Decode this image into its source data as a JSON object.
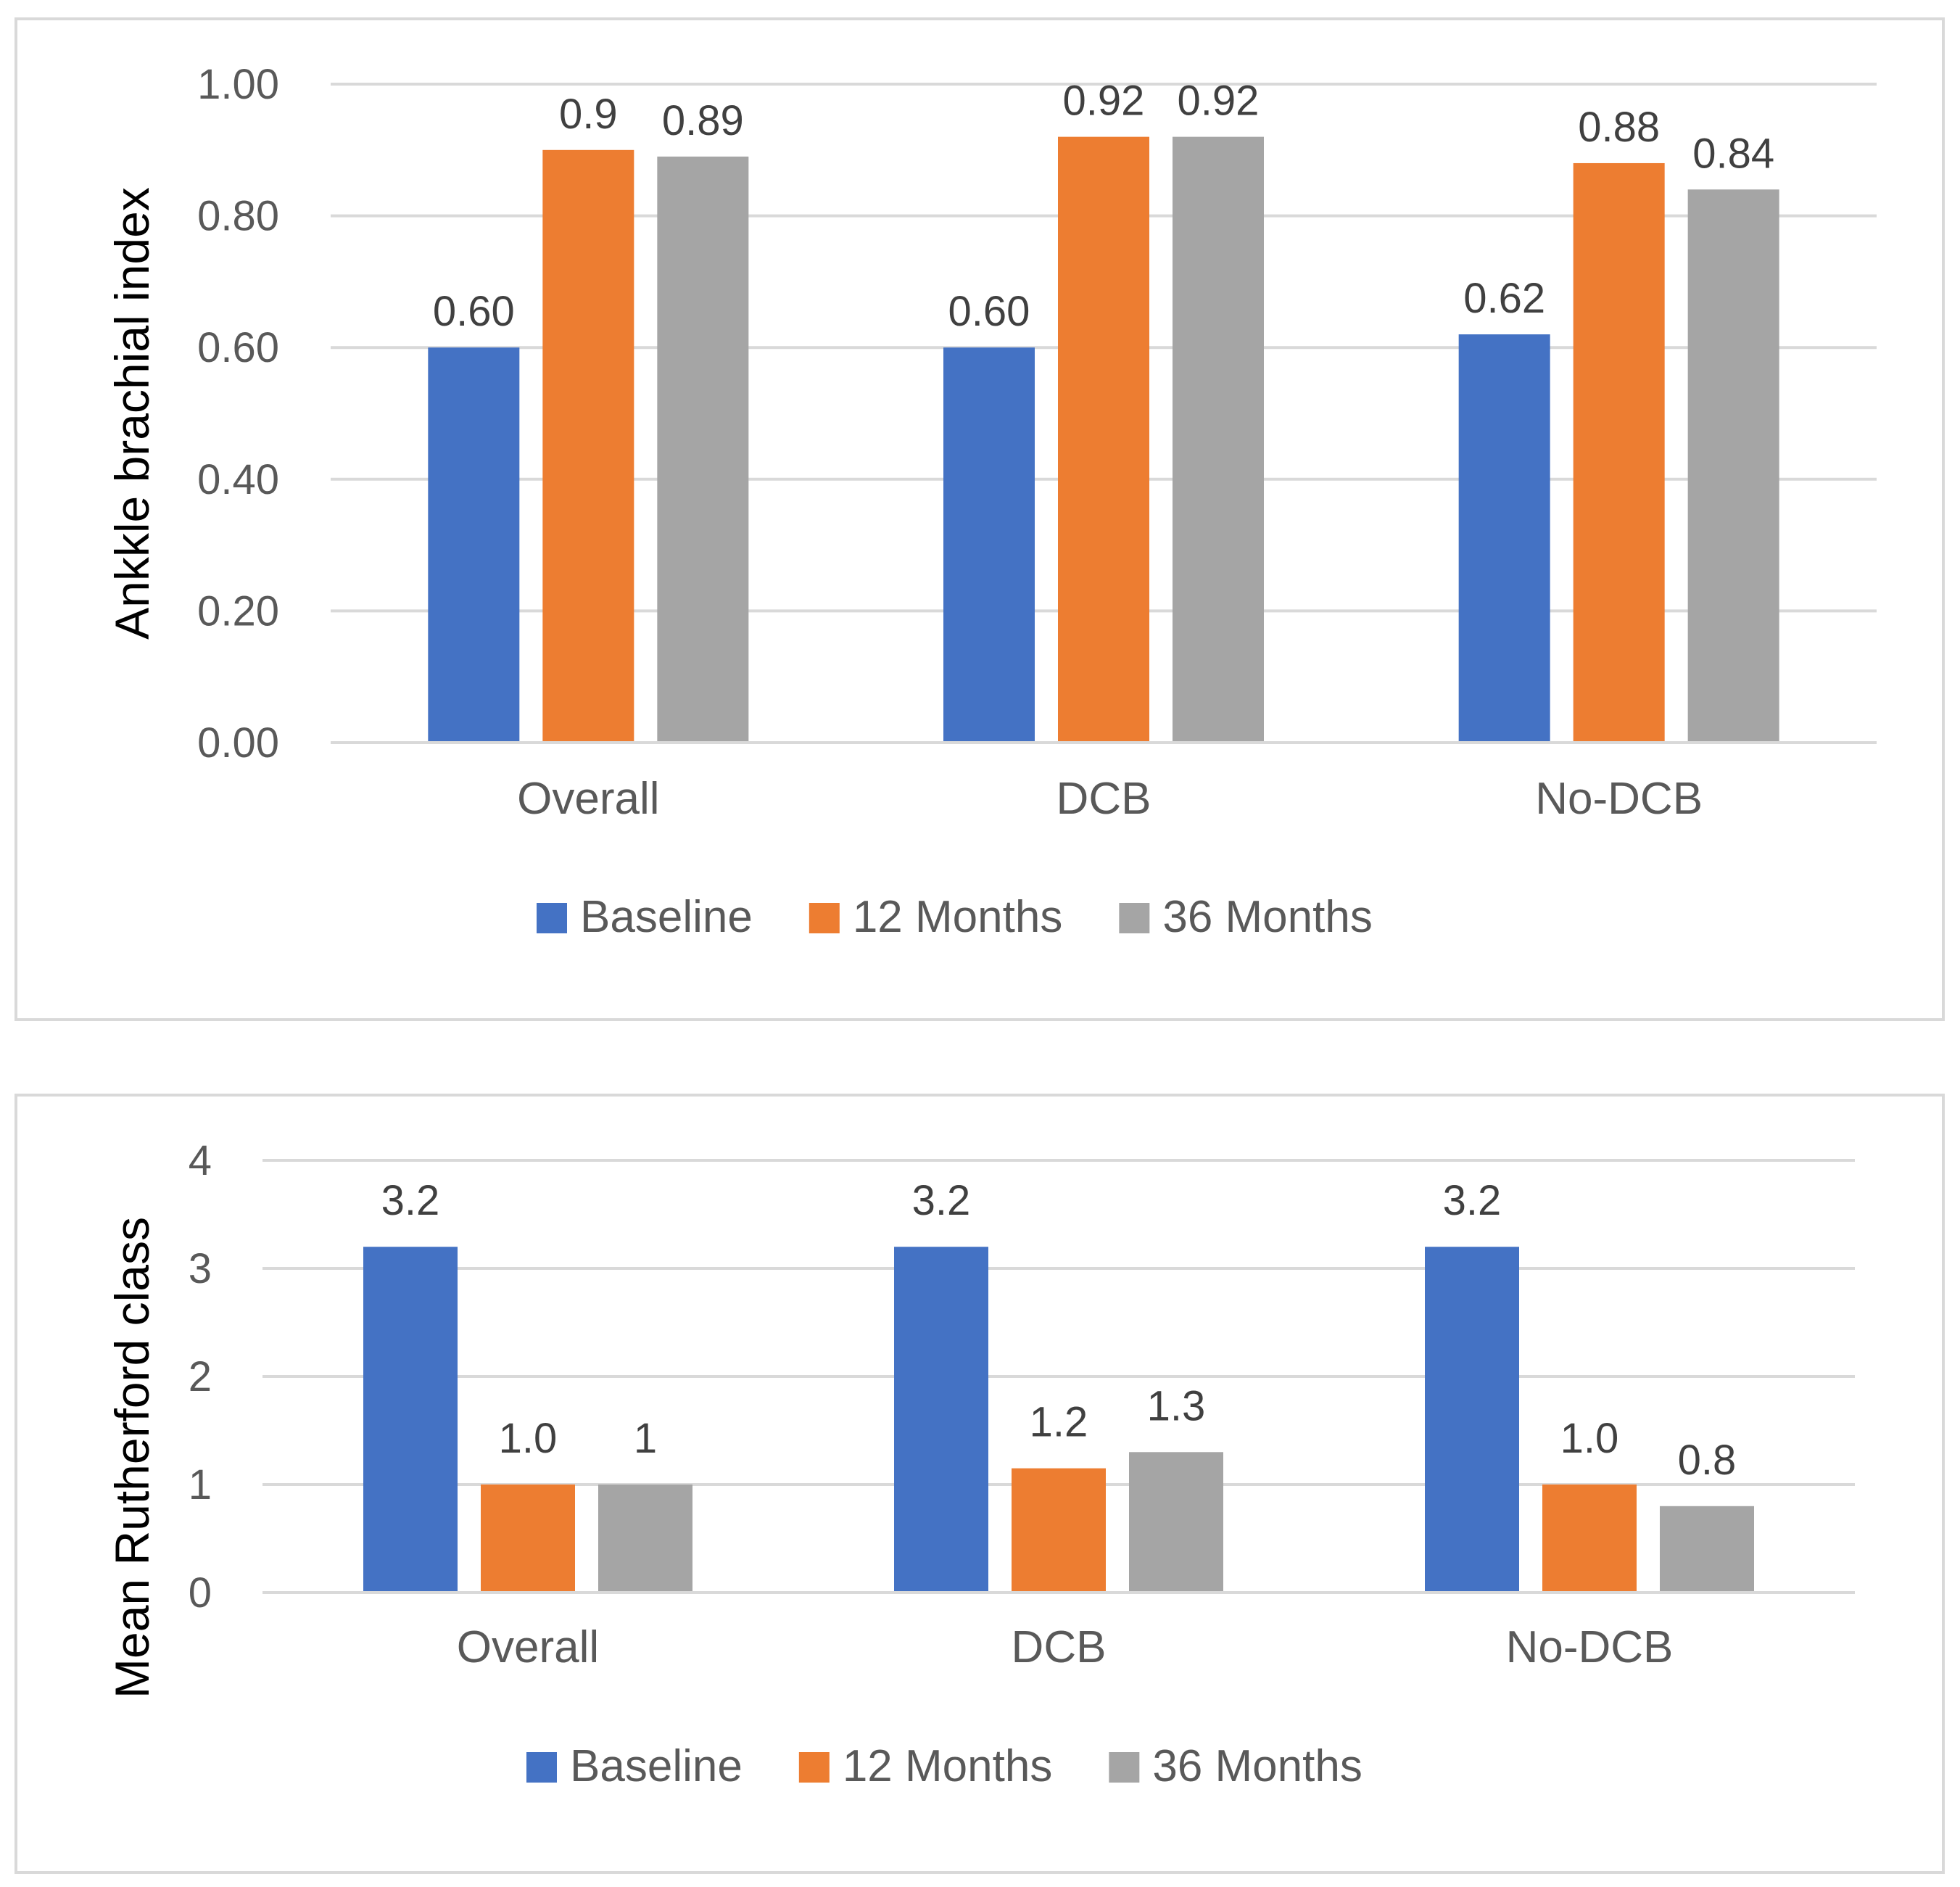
{
  "colors": {
    "baseline": "#4472C4",
    "m12": "#ED7D31",
    "m36": "#A5A5A5",
    "grid": "#D9D9D9",
    "frame": "#D9D9D9"
  },
  "chart_data": [
    {
      "type": "bar",
      "ylabel": "Ankkle brachial index",
      "xlabel": "",
      "ylim": [
        0,
        1.0
      ],
      "yticks": [
        "0.00",
        "0.20",
        "0.40",
        "0.60",
        "0.80",
        "1.00"
      ],
      "ytick_values": [
        0,
        0.2,
        0.4,
        0.6,
        0.8,
        1.0
      ],
      "grid": true,
      "legend_position": "bottom",
      "categories": [
        "Overall",
        "DCB",
        "No-DCB"
      ],
      "series": [
        {
          "name": "Baseline",
          "values": [
            0.6,
            0.6,
            0.62
          ],
          "labels": [
            "0.60",
            "0.60",
            "0.62"
          ]
        },
        {
          "name": "12 Months",
          "values": [
            0.9,
            0.92,
            0.88
          ],
          "labels": [
            "0.9",
            "0.92",
            "0.88"
          ]
        },
        {
          "name": "36 Months",
          "values": [
            0.89,
            0.92,
            0.84
          ],
          "labels": [
            "0.89",
            "0.92",
            "0.84"
          ]
        }
      ]
    },
    {
      "type": "bar",
      "ylabel": "Mean Rutherford class",
      "xlabel": "",
      "ylim": [
        0,
        4
      ],
      "yticks": [
        "0",
        "1",
        "2",
        "3",
        "4"
      ],
      "ytick_values": [
        0,
        1,
        2,
        3,
        4
      ],
      "grid": true,
      "legend_position": "bottom",
      "categories": [
        "Overall",
        "DCB",
        "No-DCB"
      ],
      "series": [
        {
          "name": "Baseline",
          "values": [
            3.2,
            3.2,
            3.2
          ],
          "labels": [
            "3.2",
            "3.2",
            "3.2"
          ]
        },
        {
          "name": "12 Months",
          "values": [
            1.0,
            1.15,
            1.0
          ],
          "labels": [
            "1.0",
            "1.2",
            "1.0"
          ]
        },
        {
          "name": "36 Months",
          "values": [
            1.0,
            1.3,
            0.8
          ],
          "labels": [
            "1",
            "1.3",
            "0.8"
          ]
        }
      ]
    }
  ]
}
